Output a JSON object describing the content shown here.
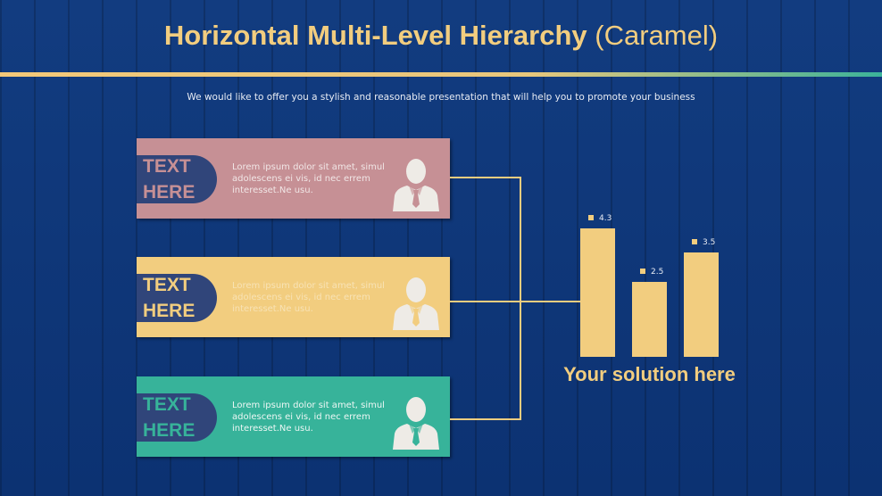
{
  "header": {
    "title_bold": "Horizontal Multi-Level Hierarchy",
    "title_light": "(Caramel)",
    "subtitle": "We would like to offer you a stylish and reasonable presentation that will help you to promote your business"
  },
  "boxes": [
    {
      "tag_line1": "TEXT",
      "tag_line2": "HERE",
      "text": "Lorem ipsum dolor sit amet, simul adolescens ei vis, id nec errem interesset.Ne usu.",
      "color": "#c69095",
      "tag_text_color": "#c69095",
      "text_color": "#f1e6e6",
      "icon": "businessman-icon"
    },
    {
      "tag_line1": "TEXT",
      "tag_line2": "HERE",
      "text": "Lorem ipsum dolor sit amet, simul adolescens ei vis, id nec errem interesset.Ne usu.",
      "color": "#f2cd7f",
      "tag_text_color": "#f2cd7f",
      "text_color": "#f7e2b4",
      "icon": "businessman-icon"
    },
    {
      "tag_line1": "TEXT",
      "tag_line2": "HERE",
      "text": "Lorem ipsum dolor sit amet, simul adolescens ei vis, id nec errem interesset.Ne usu.",
      "color": "#37b39a",
      "tag_text_color": "#37b39a",
      "text_color": "#eef7f4",
      "icon": "businessman-icon"
    }
  ],
  "chart_data": {
    "type": "bar",
    "categories": [
      "",
      "",
      ""
    ],
    "values": [
      4.3,
      2.5,
      3.5
    ],
    "data_labels": [
      "4.3",
      "2.5",
      "3.5"
    ],
    "color": "#f2cd7f"
  },
  "solution": "Your solution here"
}
